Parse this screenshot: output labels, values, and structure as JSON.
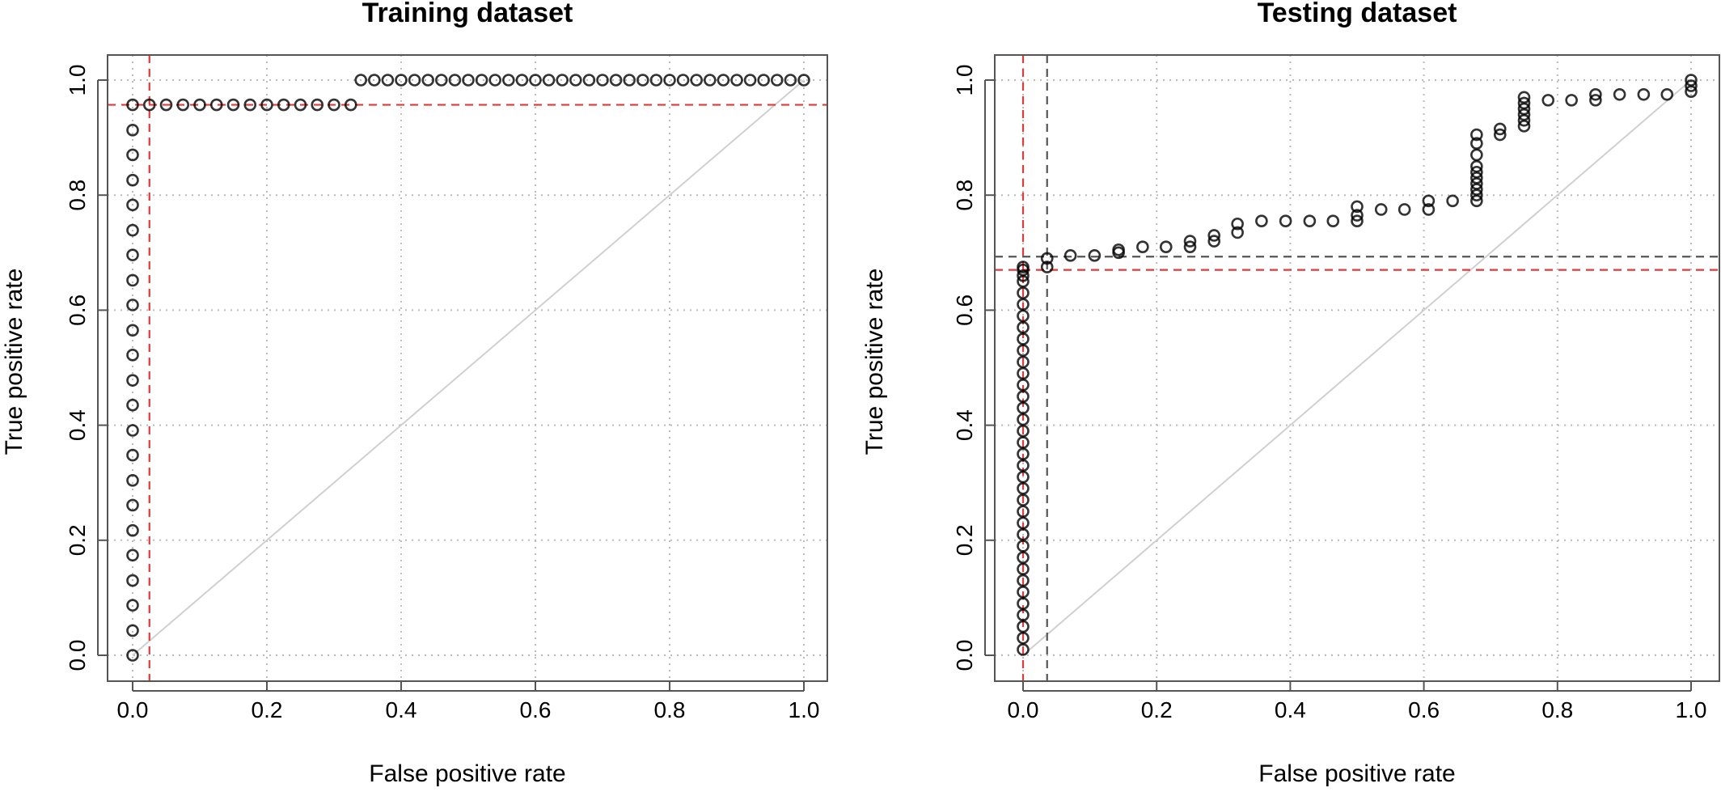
{
  "chart_data": [
    {
      "type": "scatter",
      "title": "Training dataset",
      "xlabel": "False positive rate",
      "ylabel": "True positive rate",
      "xlim": [
        0,
        1
      ],
      "ylim": [
        0,
        1
      ],
      "xticks": [
        "0.0",
        "0.2",
        "0.4",
        "0.6",
        "0.8",
        "1.0"
      ],
      "yticks": [
        "0.0",
        "0.2",
        "0.4",
        "0.6",
        "0.8",
        "1.0"
      ],
      "grid": true,
      "diagonal_reference": true,
      "cutoff": {
        "fpr": 0.025,
        "tpr": 0.957
      },
      "colors": {
        "points": "#000000",
        "cutoff_lines": "#e03a3a",
        "diagonal": "#d0d0d0",
        "grid": "#bbbbbb"
      },
      "series": [
        {
          "x": [
            0,
            0,
            0,
            0,
            0,
            0,
            0,
            0,
            0,
            0,
            0,
            0,
            0,
            0,
            0,
            0,
            0,
            0,
            0,
            0,
            0,
            0,
            0,
            0.025,
            0.05,
            0.075,
            0.1,
            0.125,
            0.15,
            0.175,
            0.2,
            0.225,
            0.25,
            0.275,
            0.3,
            0.325,
            0.34,
            0.36,
            0.38,
            0.4,
            0.42,
            0.44,
            0.46,
            0.48,
            0.5,
            0.52,
            0.54,
            0.56,
            0.58,
            0.6,
            0.62,
            0.64,
            0.66,
            0.68,
            0.7,
            0.72,
            0.74,
            0.76,
            0.78,
            0.8,
            0.82,
            0.84,
            0.86,
            0.88,
            0.9,
            0.92,
            0.94,
            0.96,
            0.98,
            1.0
          ],
          "y": [
            0,
            0.043,
            0.087,
            0.13,
            0.174,
            0.217,
            0.261,
            0.304,
            0.348,
            0.391,
            0.435,
            0.478,
            0.522,
            0.565,
            0.609,
            0.652,
            0.696,
            0.739,
            0.783,
            0.826,
            0.87,
            0.913,
            0.957,
            0.957,
            0.957,
            0.957,
            0.957,
            0.957,
            0.957,
            0.957,
            0.957,
            0.957,
            0.957,
            0.957,
            0.957,
            0.957,
            1.0,
            1.0,
            1.0,
            1.0,
            1.0,
            1.0,
            1.0,
            1.0,
            1.0,
            1.0,
            1.0,
            1.0,
            1.0,
            1.0,
            1.0,
            1.0,
            1.0,
            1.0,
            1.0,
            1.0,
            1.0,
            1.0,
            1.0,
            1.0,
            1.0,
            1.0,
            1.0,
            1.0,
            1.0,
            1.0,
            1.0,
            1.0,
            1.0,
            1.0
          ]
        }
      ]
    },
    {
      "type": "scatter",
      "title": "Testing dataset",
      "xlabel": "False positive rate",
      "ylabel": "True positive rate",
      "xlim": [
        0,
        1
      ],
      "ylim": [
        0,
        1
      ],
      "xticks": [
        "0.0",
        "0.2",
        "0.4",
        "0.6",
        "0.8",
        "1.0"
      ],
      "yticks": [
        "0.0",
        "0.2",
        "0.4",
        "0.6",
        "0.8",
        "1.0"
      ],
      "grid": true,
      "diagonal_reference": true,
      "cutoff": {
        "fpr": 0.0,
        "tpr": 0.67
      },
      "cutoff_alt": {
        "fpr": 0.036,
        "tpr": 0.693
      },
      "colors": {
        "points": "#000000",
        "cutoff_lines": "#e03a3a",
        "cutoff_alt_lines": "#555555",
        "diagonal": "#d0d0d0",
        "grid": "#bbbbbb"
      },
      "series": [
        {
          "x": [
            0,
            0,
            0,
            0,
            0,
            0,
            0,
            0,
            0,
            0,
            0,
            0,
            0,
            0,
            0,
            0,
            0,
            0,
            0,
            0,
            0,
            0,
            0,
            0,
            0,
            0,
            0,
            0,
            0,
            0,
            0,
            0,
            0,
            0,
            0,
            0,
            0.036,
            0.036,
            0.071,
            0.107,
            0.143,
            0.143,
            0.179,
            0.214,
            0.25,
            0.25,
            0.286,
            0.286,
            0.321,
            0.321,
            0.357,
            0.393,
            0.429,
            0.464,
            0.5,
            0.5,
            0.5,
            0.536,
            0.571,
            0.607,
            0.607,
            0.643,
            0.679,
            0.679,
            0.679,
            0.679,
            0.679,
            0.679,
            0.679,
            0.679,
            0.679,
            0.679,
            0.714,
            0.714,
            0.75,
            0.75,
            0.75,
            0.75,
            0.75,
            0.75,
            0.786,
            0.821,
            0.857,
            0.857,
            0.893,
            0.929,
            0.964,
            1.0,
            1.0,
            1.0
          ],
          "y": [
            0.01,
            0.03,
            0.05,
            0.07,
            0.09,
            0.11,
            0.13,
            0.15,
            0.17,
            0.19,
            0.21,
            0.23,
            0.25,
            0.27,
            0.29,
            0.31,
            0.33,
            0.35,
            0.37,
            0.39,
            0.41,
            0.43,
            0.45,
            0.47,
            0.49,
            0.51,
            0.53,
            0.55,
            0.57,
            0.59,
            0.61,
            0.63,
            0.65,
            0.66,
            0.67,
            0.675,
            0.675,
            0.69,
            0.695,
            0.695,
            0.7,
            0.705,
            0.71,
            0.71,
            0.71,
            0.72,
            0.72,
            0.73,
            0.735,
            0.75,
            0.755,
            0.755,
            0.755,
            0.755,
            0.755,
            0.765,
            0.78,
            0.775,
            0.775,
            0.775,
            0.79,
            0.79,
            0.79,
            0.8,
            0.81,
            0.82,
            0.83,
            0.84,
            0.85,
            0.87,
            0.89,
            0.905,
            0.905,
            0.915,
            0.92,
            0.93,
            0.94,
            0.95,
            0.96,
            0.97,
            0.965,
            0.965,
            0.965,
            0.975,
            0.975,
            0.975,
            0.975,
            0.98,
            0.99,
            1.0
          ]
        }
      ]
    }
  ]
}
